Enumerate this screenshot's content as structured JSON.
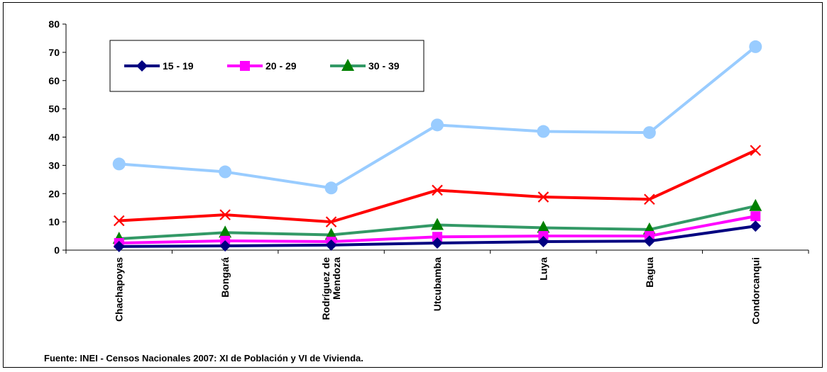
{
  "chart_data": {
    "type": "line",
    "categories": [
      "Chachapoyas",
      "Bongará",
      "Rodríguez de Mendoza",
      "Utcubamba",
      "Luya",
      "Bagua",
      "Condorcanqui"
    ],
    "category_lines": [
      [
        "Chachapoyas"
      ],
      [
        "Bongará"
      ],
      [
        "Rodríguez de",
        "Mendoza"
      ],
      [
        "Utcubamba"
      ],
      [
        "Luya"
      ],
      [
        "Bagua"
      ],
      [
        "Condorcanqui"
      ]
    ],
    "ylim": [
      0,
      80
    ],
    "yticks": [
      "0",
      "10",
      "20",
      "30",
      "40",
      "50",
      "60",
      "70",
      "80"
    ],
    "grid": false,
    "legend_position": "top-left",
    "series": [
      {
        "name": "15 - 19",
        "color": "#000080",
        "marker": "diamond",
        "values": [
          1.3,
          1.5,
          1.8,
          2.5,
          3.0,
          3.2,
          8.5
        ]
      },
      {
        "name": "20 - 29",
        "color": "#ff00ff",
        "marker": "square",
        "values": [
          2.5,
          3.3,
          3.0,
          4.7,
          5.0,
          5.0,
          12.0
        ]
      },
      {
        "name": "30 - 39",
        "color": "#339966",
        "marker": "triangle",
        "values": [
          4.0,
          6.2,
          5.4,
          8.9,
          7.9,
          7.3,
          15.6
        ]
      },
      {
        "color": "#ff0000",
        "marker": "x",
        "values": [
          10.4,
          12.5,
          10.0,
          21.2,
          18.8,
          18.0,
          35.3
        ]
      },
      {
        "color": "#99ccff",
        "marker": "circle",
        "values": [
          30.5,
          27.7,
          22.0,
          44.3,
          42.0,
          41.6,
          72.0
        ]
      }
    ]
  },
  "source": "Fuente: INEI - Censos Nacionales 2007: XI de Población y VI de Vivienda."
}
